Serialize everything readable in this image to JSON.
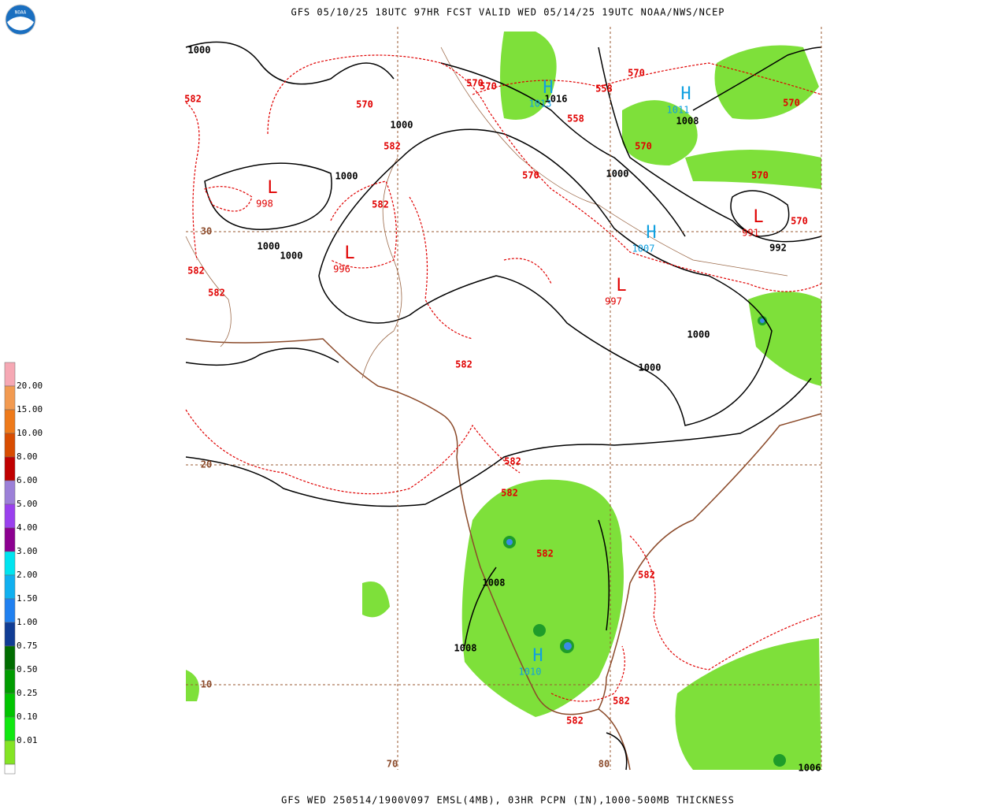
{
  "header": {
    "title": "GFS 05/10/25 18UTC 97HR FCST VALID WED 05/14/25 19UTC NOAA/NWS/NCEP",
    "logo_text": "NOAA"
  },
  "footer": {
    "caption": "GFS WED 250514/1900V097 EMSL(4MB), 03HR PCPN (IN),1000-500MB THICKNESS"
  },
  "legend": {
    "labels": [
      "20.00",
      "15.00",
      "10.00",
      "8.00",
      "6.00",
      "5.00",
      "4.00",
      "3.00",
      "2.00",
      "1.50",
      "1.00",
      "0.75",
      "0.50",
      "0.25",
      "0.10",
      "0.01"
    ],
    "colors": [
      "#f6a8b4",
      "#f29a50",
      "#ee7a1a",
      "#d84c00",
      "#c00000",
      "#9c80d8",
      "#9a40ee",
      "#8c0090",
      "#00e4f0",
      "#10b0f0",
      "#2080f0",
      "#103c94",
      "#006c00",
      "#009c00",
      "#00c400",
      "#10e810",
      "#84e424",
      "#ffffff"
    ]
  },
  "map": {
    "pressure_labels": [
      "1000",
      "1000",
      "1000",
      "1000",
      "1000",
      "1000",
      "1008",
      "1016",
      "992",
      "1000",
      "1000",
      "1008",
      "1008",
      "1006"
    ],
    "pressure_color": "#000000",
    "thickness_labels": [
      "570",
      "570",
      "570",
      "558",
      "558",
      "570",
      "570",
      "570",
      "570",
      "570",
      "570",
      "582",
      "582",
      "582",
      "582",
      "582",
      "582",
      "582",
      "582",
      "582",
      "582",
      "582",
      "582"
    ],
    "thickness_color": "#e00000",
    "highs": [
      {
        "symbol": "H",
        "value": "1013"
      },
      {
        "symbol": "H",
        "value": "1011"
      },
      {
        "symbol": "H",
        "value": "1007"
      },
      {
        "symbol": "H",
        "value": "1010"
      }
    ],
    "high_color": "#10a0e0",
    "lows": [
      {
        "symbol": "L",
        "value": "998"
      },
      {
        "symbol": "L",
        "value": "996"
      },
      {
        "symbol": "L",
        "value": "997"
      },
      {
        "symbol": "L",
        "value": "991"
      }
    ],
    "low_color": "#e00000",
    "grid_labels": [
      "30",
      "20",
      "10",
      "70",
      "80"
    ],
    "grid_color": "#8b4a2a"
  }
}
